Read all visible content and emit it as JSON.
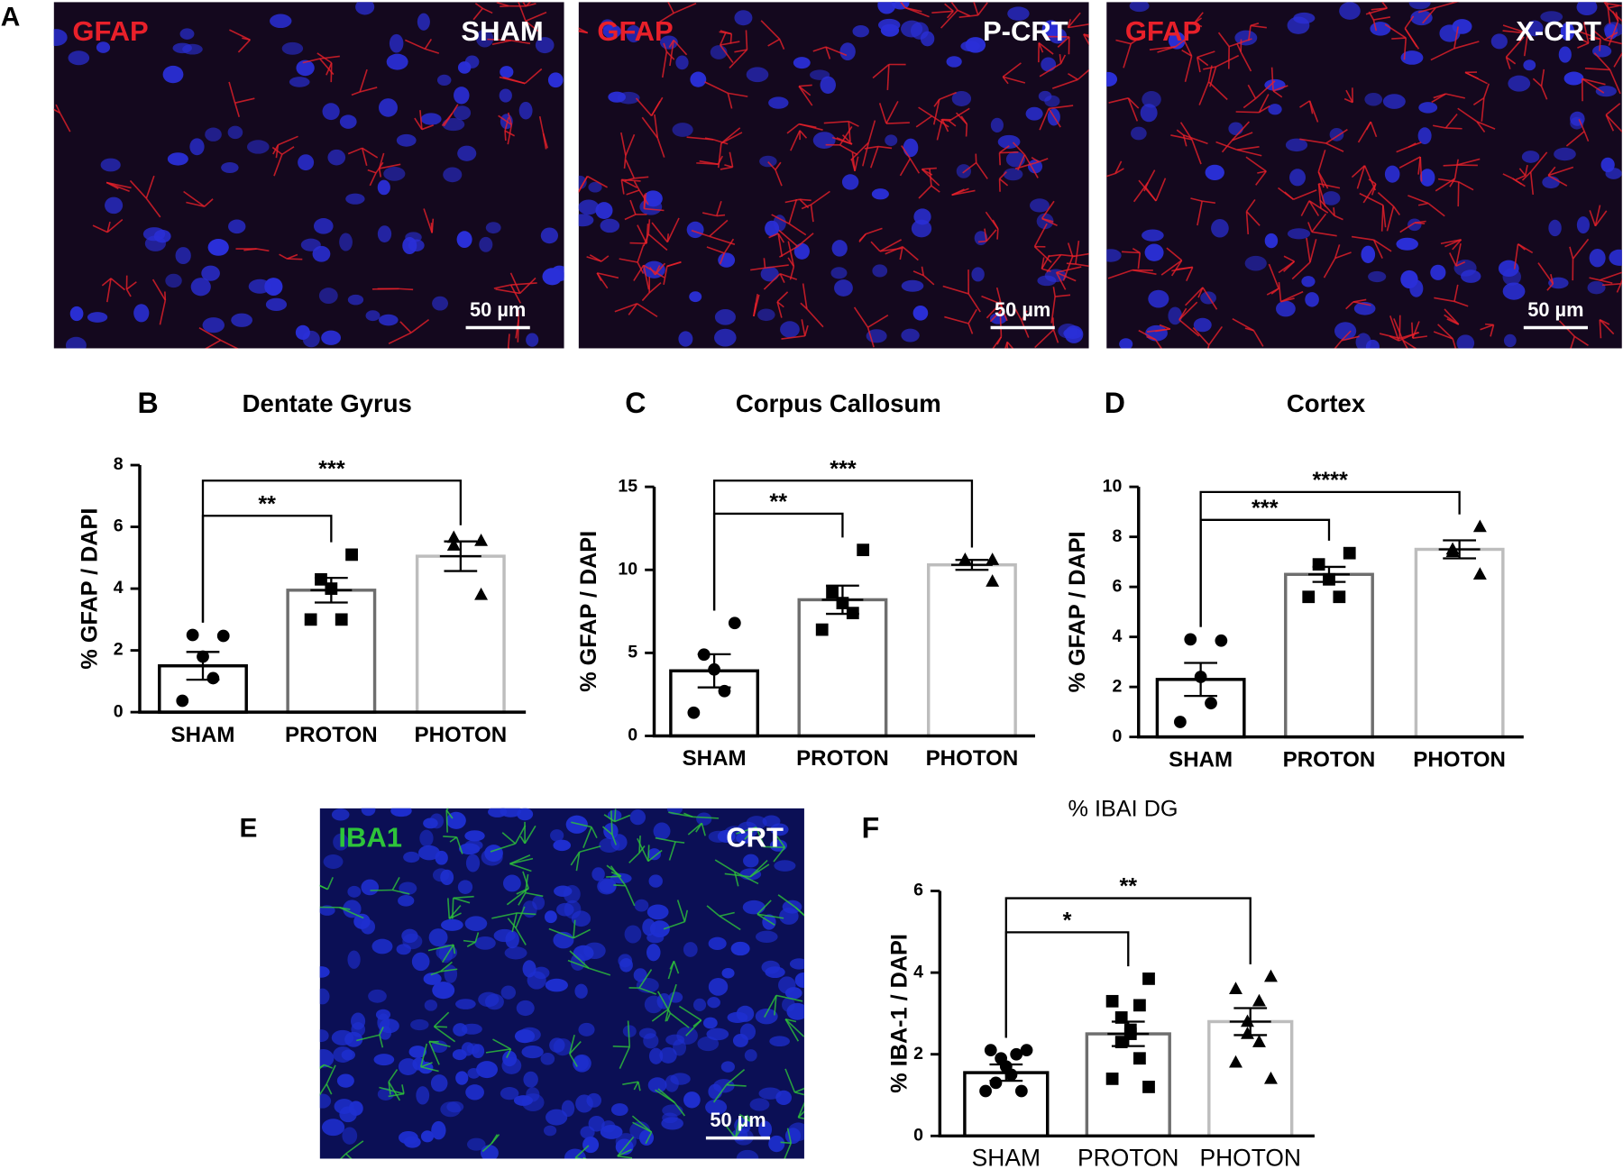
{
  "micrographs": [
    {
      "panel": "A",
      "images": [
        {
          "stain": "GFAP",
          "stain_color": "#e8202a",
          "condition": "SHAM",
          "scale": "50 µm"
        },
        {
          "stain": "GFAP",
          "stain_color": "#e8202a",
          "condition": "P-CRT",
          "scale": "50 µm"
        },
        {
          "stain": "GFAP",
          "stain_color": "#e8202a",
          "condition": "X-CRT",
          "scale": "50 µm"
        }
      ]
    },
    {
      "panel": "E",
      "images": [
        {
          "stain": "IBA1",
          "stain_color": "#2ec43a",
          "condition": "CRT",
          "scale": "50 µm"
        }
      ]
    }
  ],
  "chart_data": [
    {
      "type": "bar",
      "panel": "B",
      "title": "Dentate Gyrus",
      "y_label": "% GFAP / DAPI",
      "categories": [
        "SHAM",
        "PROTON",
        "PHOTON"
      ],
      "values": [
        1.5,
        3.95,
        5.05
      ],
      "errors": [
        0.45,
        0.4,
        0.48
      ],
      "points": [
        [
          2.47,
          2.5,
          1.8,
          1.1,
          0.37
        ],
        [
          5.1,
          4.3,
          4.0,
          3.0,
          3.0
        ],
        [
          5.55,
          5.65,
          5.4,
          3.8
        ]
      ],
      "markers": [
        "circle",
        "square",
        "triangle"
      ],
      "edge_colors": [
        "#000000",
        "#6e6e6e",
        "#bdbdbd"
      ],
      "significance": [
        {
          "groups": [
            "SHAM",
            "PROTON"
          ],
          "label": "**"
        },
        {
          "groups": [
            "SHAM",
            "PHOTON"
          ],
          "label": "***"
        }
      ],
      "ylim": [
        0,
        8
      ],
      "yticks": [
        0,
        2,
        4,
        6,
        8
      ]
    },
    {
      "type": "bar",
      "panel": "C",
      "title": "Corpus Callosum",
      "y_label": "% GFAP / DAPI",
      "categories": [
        "SHAM",
        "PROTON",
        "PHOTON"
      ],
      "values": [
        3.92,
        8.2,
        10.3
      ],
      "errors": [
        1.0,
        0.85,
        0.3
      ],
      "points": [
        [
          6.8,
          4.9,
          4.0,
          2.7,
          1.4
        ],
        [
          11.2,
          8.65,
          8.0,
          7.4,
          6.4
        ],
        [
          10.6,
          10.6,
          10.6,
          9.3
        ]
      ],
      "markers": [
        "circle",
        "square",
        "triangle"
      ],
      "edge_colors": [
        "#000000",
        "#6e6e6e",
        "#bdbdbd"
      ],
      "significance": [
        {
          "groups": [
            "SHAM",
            "PROTON"
          ],
          "label": "**"
        },
        {
          "groups": [
            "SHAM",
            "PHOTON"
          ],
          "label": "***"
        }
      ],
      "ylim": [
        0,
        15
      ],
      "yticks": [
        0,
        5,
        10,
        15
      ]
    },
    {
      "type": "bar",
      "panel": "D",
      "title": "Cortex",
      "y_label": "% GFAP / DAPI",
      "categories": [
        "SHAM",
        "PROTON",
        "PHOTON"
      ],
      "values": [
        2.3,
        6.5,
        7.5
      ],
      "errors": [
        0.66,
        0.3,
        0.36
      ],
      "points": [
        [
          3.85,
          3.9,
          2.4,
          1.35,
          0.6
        ],
        [
          7.35,
          6.9,
          6.3,
          5.6,
          5.6
        ],
        [
          8.4,
          7.5,
          7.4,
          6.5
        ]
      ],
      "markers": [
        "circle",
        "square",
        "triangle"
      ],
      "edge_colors": [
        "#000000",
        "#6e6e6e",
        "#bdbdbd"
      ],
      "significance": [
        {
          "groups": [
            "SHAM",
            "PROTON"
          ],
          "label": "***"
        },
        {
          "groups": [
            "SHAM",
            "PHOTON"
          ],
          "label": "****"
        }
      ],
      "ylim": [
        0,
        10
      ],
      "yticks": [
        0,
        2,
        4,
        6,
        8,
        10
      ]
    },
    {
      "type": "bar",
      "panel": "F",
      "title": "% IBAI DG",
      "y_label": "% IBA-1 / DAPI",
      "categories": [
        "SHAM",
        "PROTON",
        "PHOTON"
      ],
      "values": [
        1.55,
        2.5,
        2.8
      ],
      "errors": [
        0.2,
        0.3,
        0.33
      ],
      "points": [
        [
          2.1,
          2.1,
          2.0,
          1.9,
          1.7,
          1.5,
          1.3,
          1.1,
          1.1
        ],
        [
          3.85,
          3.3,
          3.2,
          2.9,
          2.6,
          2.5,
          2.3,
          1.9,
          1.4,
          1.2
        ],
        [
          3.9,
          3.6,
          3.3,
          2.8,
          2.5,
          2.3,
          1.8,
          1.4
        ]
      ],
      "markers": [
        "circle",
        "square",
        "triangle"
      ],
      "edge_colors": [
        "#000000",
        "#6e6e6e",
        "#bdbdbd"
      ],
      "significance": [
        {
          "groups": [
            "SHAM",
            "PROTON"
          ],
          "label": "*"
        },
        {
          "groups": [
            "SHAM",
            "PHOTON"
          ],
          "label": "**"
        }
      ],
      "ylim": [
        0,
        6
      ],
      "yticks": [
        0,
        2,
        4,
        6
      ]
    }
  ]
}
